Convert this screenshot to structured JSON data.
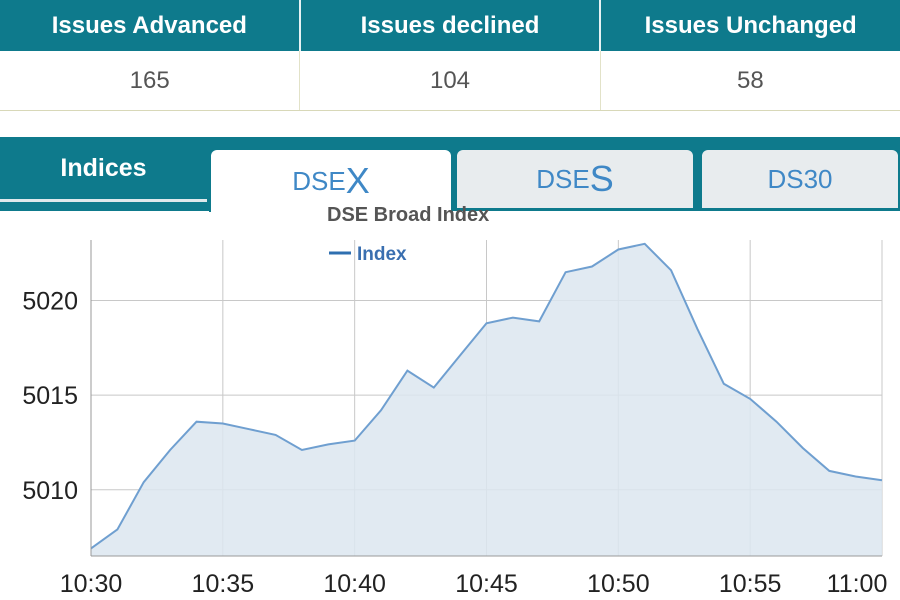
{
  "issues": {
    "headers": [
      "Issues Advanced",
      "Issues declined",
      "Issues Unchanged"
    ],
    "values": [
      "165",
      "104",
      "58"
    ]
  },
  "tabs": {
    "section_label": "Indices",
    "dsex": {
      "prefix": "DSE",
      "suffix": "X"
    },
    "dses": {
      "prefix": "DSE",
      "suffix": "S"
    },
    "ds30": {
      "label": "DS30"
    },
    "active": "dsex"
  },
  "colors": {
    "header_bg": "#0e7a8c",
    "line": "#6f9fd0",
    "area_fill": "#dce6f0",
    "tab_text": "#3f88c6"
  },
  "chart_data": {
    "type": "area",
    "title": "DSE Broad Index",
    "legend": {
      "entries": [
        "Index"
      ],
      "placement": "top-left"
    },
    "series": [
      {
        "name": "Index"
      }
    ],
    "x_ticks": [
      "10:30",
      "10:35",
      "10:40",
      "10:45",
      "10:50",
      "10:55",
      "11:00"
    ],
    "y_ticks": [
      5010,
      5015,
      5020
    ],
    "xlim": [
      "10:30",
      "11:00"
    ],
    "ylim": [
      5006.5,
      5023.2
    ],
    "grid": true,
    "points": [
      [
        "10:30",
        5006.9
      ],
      [
        "10:31",
        5007.9
      ],
      [
        "10:32",
        5010.4
      ],
      [
        "10:33",
        5012.1
      ],
      [
        "10:34",
        5013.6
      ],
      [
        "10:35",
        5013.5
      ],
      [
        "10:36",
        5013.2
      ],
      [
        "10:37",
        5012.9
      ],
      [
        "10:38",
        5012.1
      ],
      [
        "10:39",
        5012.4
      ],
      [
        "10:40",
        5012.6
      ],
      [
        "10:41",
        5014.2
      ],
      [
        "10:42",
        5016.3
      ],
      [
        "10:43",
        5015.4
      ],
      [
        "10:44",
        5017.1
      ],
      [
        "10:45",
        5018.8
      ],
      [
        "10:46",
        5019.1
      ],
      [
        "10:47",
        5018.9
      ],
      [
        "10:48",
        5021.5
      ],
      [
        "10:49",
        5021.8
      ],
      [
        "10:50",
        5022.7
      ],
      [
        "10:51",
        5023.0
      ],
      [
        "10:52",
        5021.6
      ],
      [
        "10:53",
        5018.5
      ],
      [
        "10:54",
        5015.6
      ],
      [
        "10:55",
        5014.8
      ],
      [
        "10:56",
        5013.6
      ],
      [
        "10:57",
        5012.2
      ],
      [
        "10:58",
        5011.0
      ],
      [
        "10:59",
        5010.7
      ],
      [
        "11:00",
        5010.5
      ]
    ]
  }
}
